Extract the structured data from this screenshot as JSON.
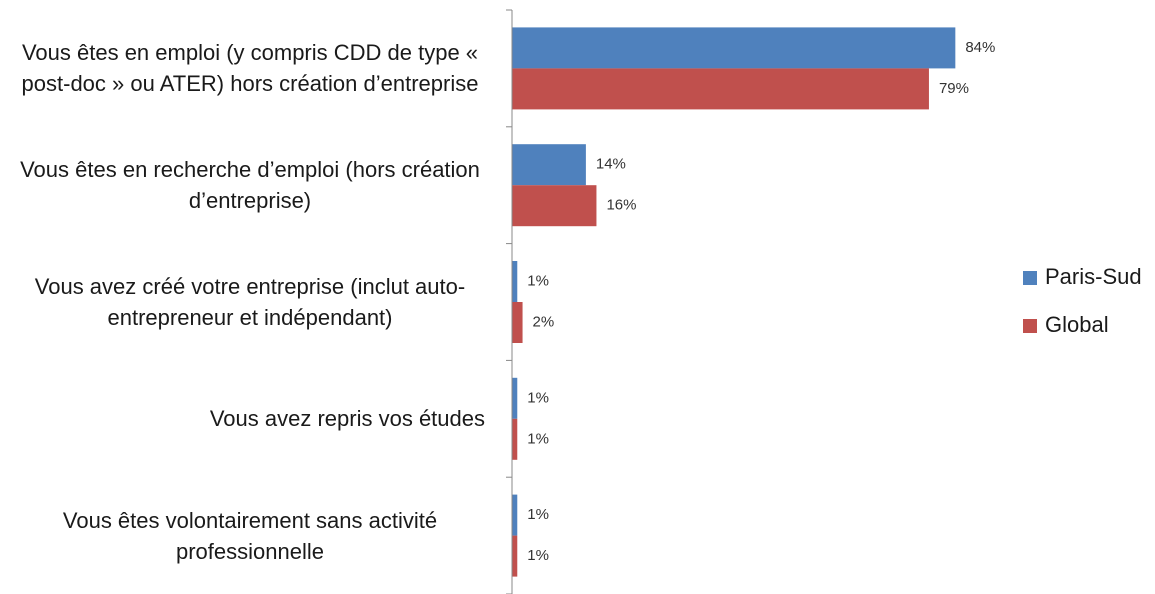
{
  "chart_data": {
    "type": "bar",
    "orientation": "horizontal",
    "categories": [
      "Vous êtes en emploi (y compris CDD de type « post-doc » ou ATER) hors création d’entreprise",
      "Vous êtes en recherche d’emploi (hors création d’entreprise)",
      "Vous avez créé votre entreprise (inclut auto-entrepreneur et indépendant)",
      "Vous avez repris vos études",
      "Vous êtes volontairement sans activité professionnelle"
    ],
    "series": [
      {
        "name": "Paris-Sud",
        "color": "#4f81bd",
        "values": [
          84,
          14,
          1,
          1,
          1
        ],
        "value_labels": [
          "84%",
          "14%",
          "1%",
          "1%",
          "1%"
        ]
      },
      {
        "name": "Global",
        "color": "#c0504d",
        "values": [
          79,
          16,
          2,
          1,
          1
        ],
        "value_labels": [
          "79%",
          "16%",
          "2%",
          "1%",
          "1%"
        ]
      }
    ],
    "xlim": [
      0,
      90
    ],
    "legend": "right"
  }
}
